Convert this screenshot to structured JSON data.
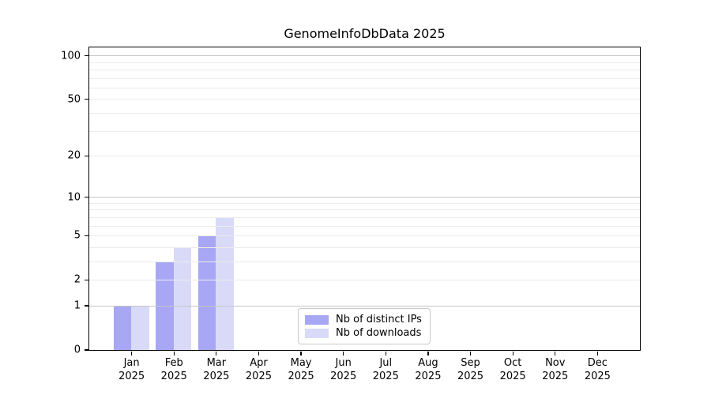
{
  "chart_data": {
    "type": "bar",
    "title": "GenomeInfoDbData 2025",
    "categories": [
      "Jan 2025",
      "Feb 2025",
      "Mar 2025",
      "Apr 2025",
      "May 2025",
      "Jun 2025",
      "Jul 2025",
      "Aug 2025",
      "Sep 2025",
      "Oct 2025",
      "Nov 2025",
      "Dec 2025"
    ],
    "x": {
      "months": [
        "Jan",
        "Feb",
        "Mar",
        "Apr",
        "May",
        "Jun",
        "Jul",
        "Aug",
        "Sep",
        "Oct",
        "Nov",
        "Dec"
      ],
      "year": "2025"
    },
    "series": [
      {
        "name": "Nb of distinct IPs",
        "color": "#a7a7f5",
        "values": [
          1,
          3,
          5,
          0,
          0,
          0,
          0,
          0,
          0,
          0,
          0,
          0
        ]
      },
      {
        "name": "Nb of downloads",
        "color": "#d9d9f8",
        "values": [
          1,
          4,
          7,
          0,
          0,
          0,
          0,
          0,
          0,
          0,
          0,
          0
        ]
      }
    ],
    "yaxis": {
      "scale": "log1p",
      "tick_labels": [
        "0",
        "1",
        "2",
        "5",
        "10",
        "20",
        "50",
        "100"
      ],
      "tick_values": [
        0,
        1,
        2,
        5,
        10,
        20,
        50,
        100
      ],
      "major_gridlines": [
        1,
        10,
        100
      ],
      "minor_gridlines": [
        2,
        3,
        4,
        5,
        6,
        7,
        8,
        9,
        20,
        30,
        40,
        50,
        60,
        70,
        80,
        90
      ],
      "ylim": [
        0,
        115
      ]
    },
    "grid": {
      "enabled": true,
      "drawn_over_bars": true,
      "major_color": "#c6c6c6",
      "minor_color": "#ececec"
    },
    "legend": {
      "position": "lower center",
      "items": [
        {
          "label": "Nb of distinct IPs",
          "color": "#a7a7f5"
        },
        {
          "label": "Nb of downloads",
          "color": "#d9d9f8"
        }
      ]
    }
  }
}
